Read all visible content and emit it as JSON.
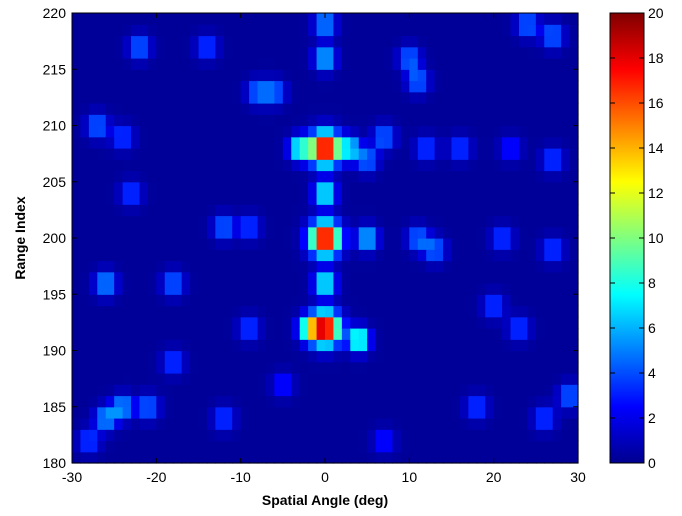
{
  "chart_data": {
    "type": "heatmap",
    "title": "",
    "xlabel": "Spatial Angle (deg)",
    "ylabel": "Range Index",
    "xlim": [
      -30,
      30
    ],
    "ylim": [
      180,
      220
    ],
    "x_ticks": [
      -30,
      -20,
      -10,
      0,
      10,
      20,
      30
    ],
    "y_ticks": [
      180,
      185,
      190,
      195,
      200,
      205,
      210,
      215,
      220
    ],
    "colormap": "jet",
    "colorbar": {
      "range": [
        0,
        20
      ],
      "ticks": [
        0,
        2,
        4,
        6,
        8,
        10,
        12,
        14,
        16,
        18,
        20
      ]
    },
    "grid_resolution": {
      "x_step_deg": 1,
      "y_step_range": 1
    },
    "background_value": 0.5,
    "peaks": [
      {
        "x": 0,
        "y": 208,
        "value": 20
      },
      {
        "x": 0,
        "y": 200,
        "value": 20
      },
      {
        "x": 0,
        "y": 192,
        "value": 20
      }
    ],
    "features": [
      {
        "x": 0,
        "y": 204,
        "value": 9
      },
      {
        "x": 0,
        "y": 196,
        "value": 9
      },
      {
        "x": -3,
        "y": 208,
        "value": 9
      },
      {
        "x": 3,
        "y": 208,
        "value": 7
      },
      {
        "x": -2,
        "y": 192,
        "value": 8
      },
      {
        "x": 4,
        "y": 191,
        "value": 10
      },
      {
        "x": 5,
        "y": 200,
        "value": 7
      },
      {
        "x": 5,
        "y": 207,
        "value": 5
      },
      {
        "x": 7,
        "y": 209,
        "value": 5
      },
      {
        "x": 0,
        "y": 216,
        "value": 7
      },
      {
        "x": 0,
        "y": 219,
        "value": 6
      },
      {
        "x": 10,
        "y": 216,
        "value": 5
      },
      {
        "x": 11,
        "y": 214,
        "value": 5
      },
      {
        "x": -22,
        "y": 217,
        "value": 5
      },
      {
        "x": -14,
        "y": 217,
        "value": 4
      },
      {
        "x": -8,
        "y": 213,
        "value": 5
      },
      {
        "x": -6,
        "y": 213,
        "value": 5
      },
      {
        "x": 24,
        "y": 219,
        "value": 5
      },
      {
        "x": 27,
        "y": 218,
        "value": 5
      },
      {
        "x": -27,
        "y": 210,
        "value": 5
      },
      {
        "x": -24,
        "y": 209,
        "value": 4
      },
      {
        "x": 12,
        "y": 208,
        "value": 4
      },
      {
        "x": 16,
        "y": 208,
        "value": 4
      },
      {
        "x": 22,
        "y": 208,
        "value": 3
      },
      {
        "x": 27,
        "y": 207,
        "value": 4
      },
      {
        "x": -23,
        "y": 204,
        "value": 4
      },
      {
        "x": -12,
        "y": 201,
        "value": 5
      },
      {
        "x": -9,
        "y": 201,
        "value": 4
      },
      {
        "x": 11,
        "y": 200,
        "value": 5
      },
      {
        "x": 13,
        "y": 199,
        "value": 5
      },
      {
        "x": 21,
        "y": 200,
        "value": 4
      },
      {
        "x": 27,
        "y": 199,
        "value": 4
      },
      {
        "x": -26,
        "y": 196,
        "value": 6
      },
      {
        "x": -18,
        "y": 196,
        "value": 5
      },
      {
        "x": 20,
        "y": 194,
        "value": 4
      },
      {
        "x": 23,
        "y": 192,
        "value": 4
      },
      {
        "x": -9,
        "y": 192,
        "value": 4
      },
      {
        "x": -18,
        "y": 189,
        "value": 4
      },
      {
        "x": -26,
        "y": 184,
        "value": 6
      },
      {
        "x": -24,
        "y": 185,
        "value": 6
      },
      {
        "x": -21,
        "y": 185,
        "value": 5
      },
      {
        "x": -28,
        "y": 182,
        "value": 4
      },
      {
        "x": -12,
        "y": 184,
        "value": 4
      },
      {
        "x": 18,
        "y": 185,
        "value": 4
      },
      {
        "x": 26,
        "y": 184,
        "value": 4
      },
      {
        "x": 29,
        "y": 186,
        "value": 5
      },
      {
        "x": 7,
        "y": 182,
        "value": 3
      },
      {
        "x": -5,
        "y": 187,
        "value": 3
      }
    ]
  }
}
